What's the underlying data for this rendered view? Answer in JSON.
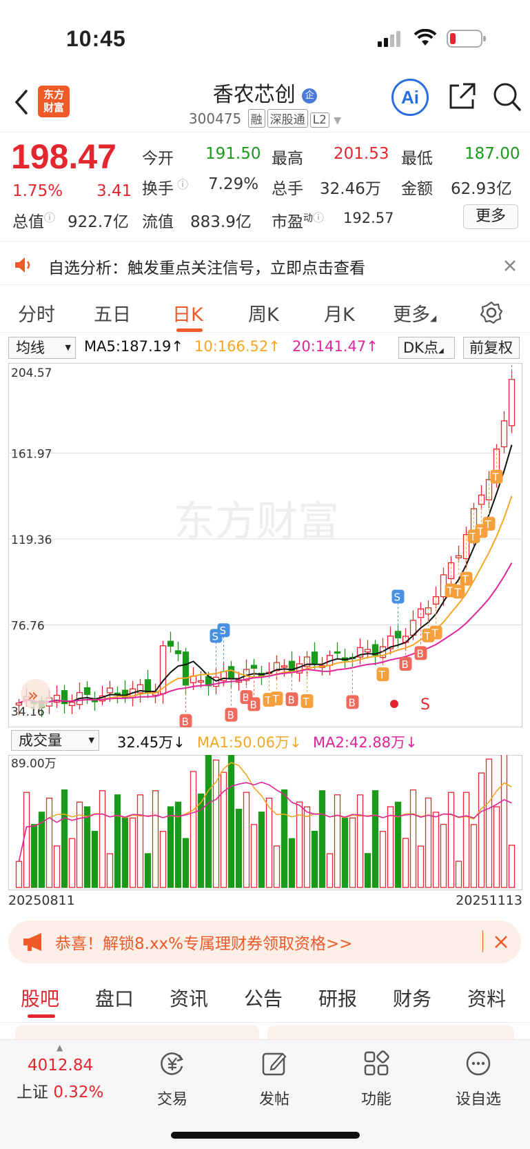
{
  "status_bar": {
    "time": "10:45"
  },
  "header": {
    "logo_line1": "东方",
    "logo_line2": "财富",
    "stock_name": "香农芯创",
    "name_badge": "企",
    "code": "300475",
    "tags": [
      "融",
      "深股通",
      "L2"
    ],
    "ai_label": "Ai"
  },
  "quote": {
    "price": "198.47",
    "change_pct": "1.75%",
    "change": "3.41",
    "open_label": "今开",
    "open": "191.50",
    "high_label": "最高",
    "high": "201.53",
    "low_label": "最低",
    "low": "187.00",
    "turnover_label": "换手",
    "turnover": "7.29%",
    "volume_label": "总手",
    "volume": "32.46万",
    "amount_label": "金额",
    "amount": "62.93亿",
    "mktcap_label": "总值",
    "mktcap": "922.7亿",
    "float_label": "流值",
    "float": "883.9亿",
    "pe_label": "市盈",
    "pe_sup": "动",
    "pe": "192.57",
    "more_label": "更多"
  },
  "notice": {
    "text": "自选分析：触发重点关注信号，立即点击查看"
  },
  "chart_tabs": [
    "分时",
    "五日",
    "日K",
    "周K",
    "月K",
    "更多"
  ],
  "indicators": {
    "ma_select": "均线",
    "ma5": "MA5:187.19↑",
    "ma10": "10:166.52↑",
    "ma20": "20:141.47↑",
    "dk": "DK点",
    "adjust": "前复权",
    "colors": {
      "ma5": "#111111",
      "ma10": "#f5a623",
      "ma20": "#e0249a",
      "up": "#e4262e",
      "down": "#1a9a1a"
    }
  },
  "chart_data": {
    "type": "candlestick",
    "y_ticks": [
      "204.57",
      "161.97",
      "119.36",
      "76.76",
      "34.16"
    ],
    "ylim": [
      34.16,
      204.57
    ],
    "watermark": "东方财富",
    "marker_label": "S",
    "x_range": [
      "20250811",
      "20251113"
    ],
    "volume": {
      "select": "成交量",
      "current": "32.45万↓",
      "ma1": "MA1:50.06万↓",
      "ma2": "MA2:42.88万↓",
      "max_label": "89.00万"
    }
  },
  "banner": {
    "text": "恭喜！解锁8.xx%专属理财券领取资格>>"
  },
  "bottom_tabs": [
    "股吧",
    "盘口",
    "资讯",
    "公告",
    "研报",
    "财务",
    "资料"
  ],
  "nav": {
    "index_value": "4012.84",
    "index_name": "上证",
    "index_change": "0.32%",
    "items": [
      "交易",
      "发帖",
      "功能",
      "设自选"
    ]
  }
}
